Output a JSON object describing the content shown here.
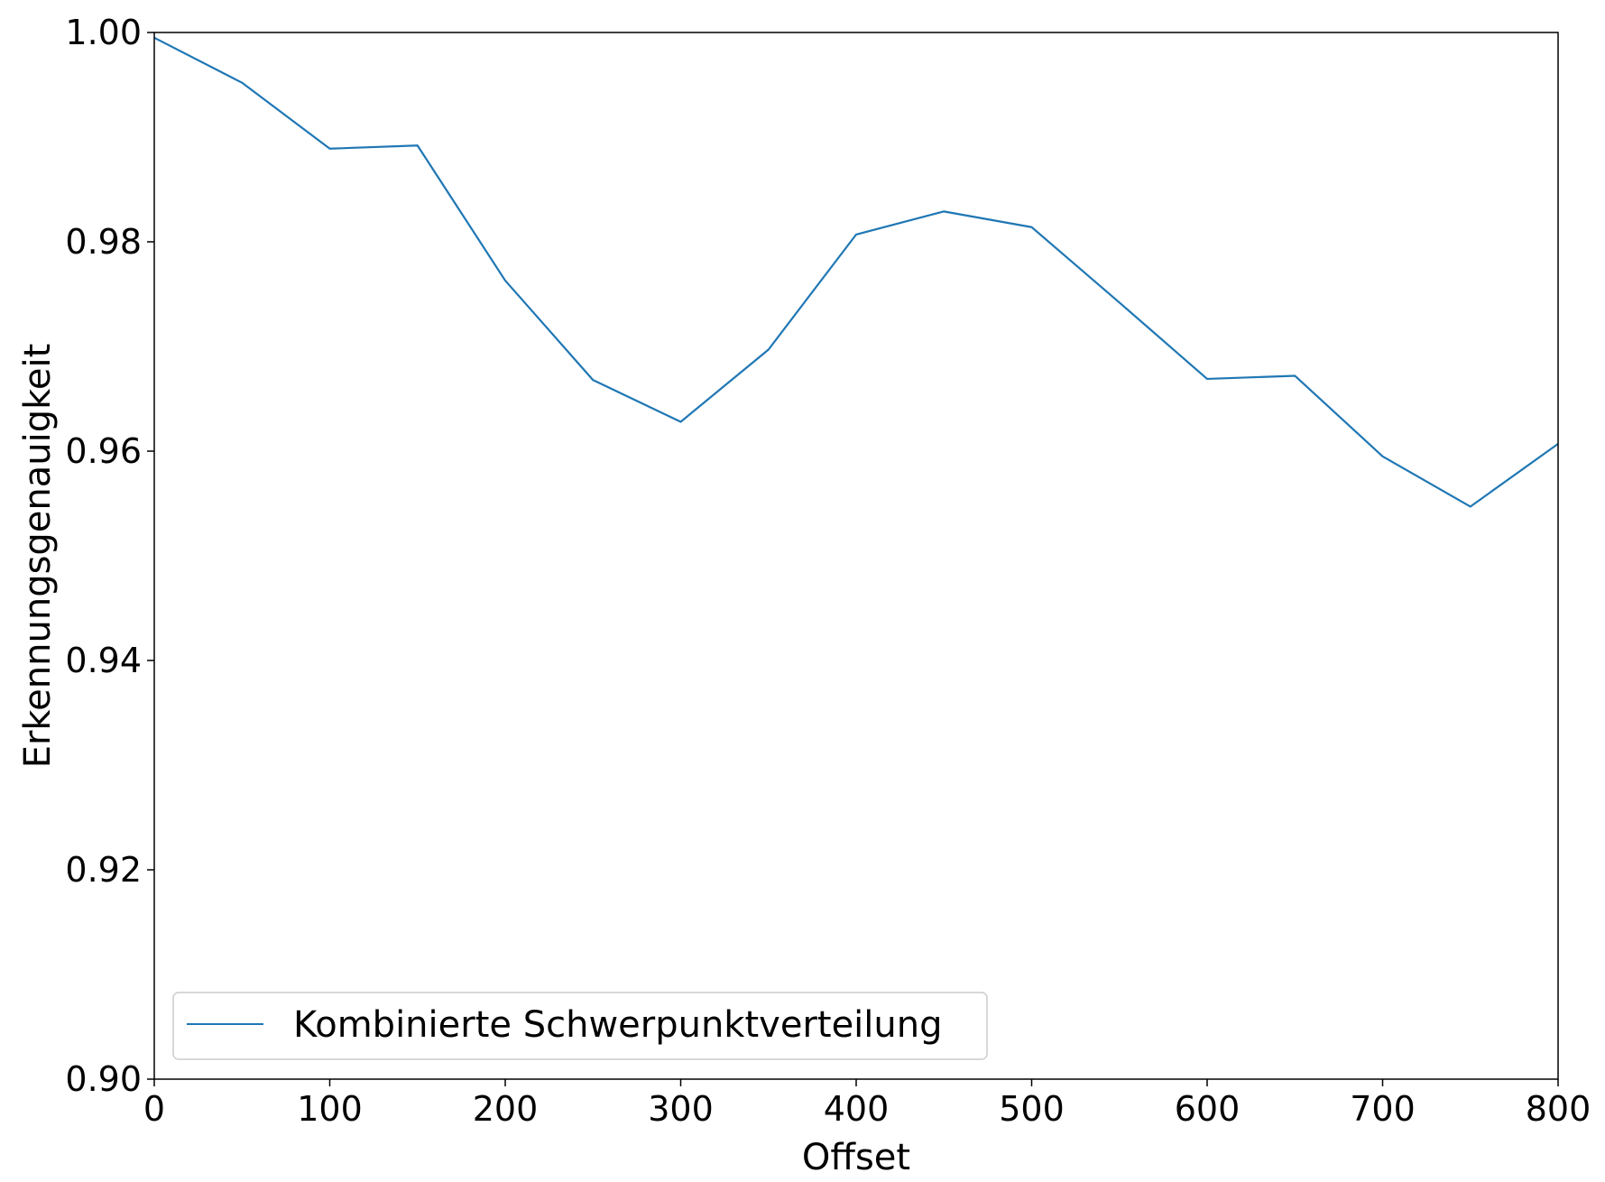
{
  "chart_data": {
    "type": "line",
    "title": "",
    "xlabel": "Offset",
    "ylabel": "Erkennungsgenauigkeit",
    "xlim": [
      0,
      800
    ],
    "ylim": [
      0.9,
      1.0
    ],
    "x_ticks": [
      0,
      100,
      200,
      300,
      400,
      500,
      600,
      700,
      800
    ],
    "x_tick_labels": [
      "0",
      "100",
      "200",
      "300",
      "400",
      "500",
      "600",
      "700",
      "800"
    ],
    "y_ticks": [
      0.9,
      0.92,
      0.94,
      0.96,
      0.98,
      1.0
    ],
    "y_tick_labels": [
      "0.90",
      "0.92",
      "0.94",
      "0.96",
      "0.98",
      "1.00"
    ],
    "grid": false,
    "legend_position": "lower-left",
    "series": [
      {
        "name": "Kombinierte Schwerpunktverteilung",
        "color": "#1f77b4",
        "x": [
          0,
          50,
          100,
          150,
          200,
          250,
          300,
          350,
          400,
          450,
          500,
          550,
          600,
          650,
          700,
          750,
          800
        ],
        "values": [
          0.9995,
          0.9952,
          0.9889,
          0.9892,
          0.9763,
          0.9668,
          0.9628,
          0.9697,
          0.9807,
          0.9829,
          0.9814,
          0.9742,
          0.9669,
          0.9672,
          0.9595,
          0.9547,
          0.9607
        ]
      }
    ]
  }
}
